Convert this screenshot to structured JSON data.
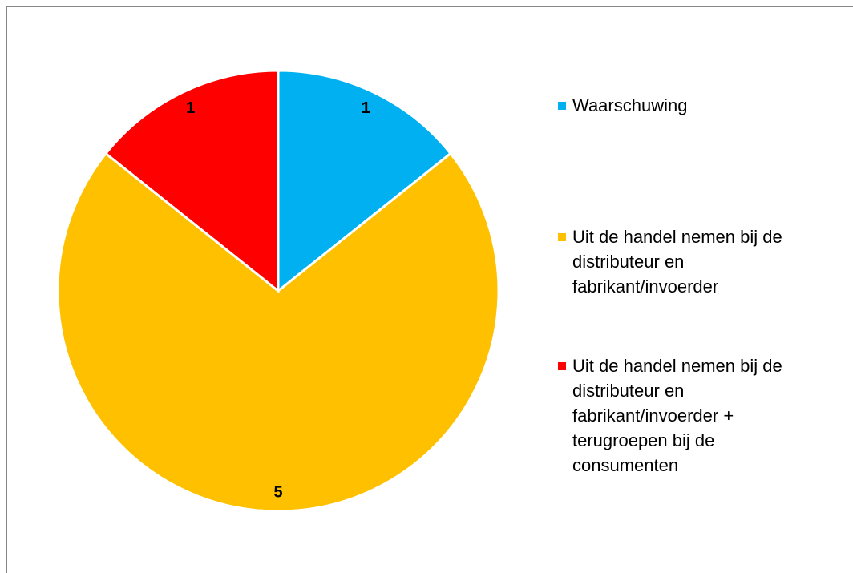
{
  "chart_data": {
    "type": "pie",
    "categories": [
      "Waarschuwing",
      "Uit de handel nemen bij de distributeur en fabrikant/invoerder",
      "Uit de handel nemen bij de distributeur en fabrikant/invoerder + terugroepen bij de consumenten"
    ],
    "values": [
      1,
      5,
      1
    ],
    "colors": [
      "#00b0f0",
      "#ffc000",
      "#ff0000"
    ]
  }
}
